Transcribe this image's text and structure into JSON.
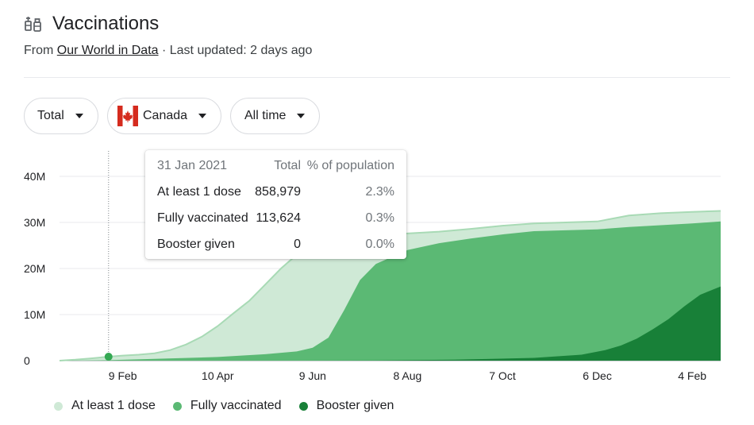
{
  "header": {
    "title": "Vaccinations",
    "title_icon": "syringe-vial-icon",
    "source_prefix": "From",
    "source_link": "Our World in Data",
    "updated": "· Last updated: 2 days ago"
  },
  "filters": {
    "metric": "Total",
    "country": "Canada",
    "country_icon": "canada-flag-icon",
    "range": "All time"
  },
  "tooltip": {
    "date": "31 Jan 2021",
    "col_total": "Total",
    "col_pct": "% of population",
    "rows": [
      {
        "label": "At least 1 dose",
        "total": "858,979",
        "pct": "2.3%"
      },
      {
        "label": "Fully vaccinated",
        "total": "113,624",
        "pct": "0.3%"
      },
      {
        "label": "Booster given",
        "total": "0",
        "pct": "0.0%"
      }
    ]
  },
  "legend": [
    {
      "label": "At least 1 dose",
      "color": "#a8dab5"
    },
    {
      "label": "Fully vaccinated",
      "color": "#5bb974"
    },
    {
      "label": "Booster given",
      "color": "#188038"
    }
  ],
  "chart_data": {
    "type": "area",
    "y_ticks": [
      "40M",
      "30M",
      "20M",
      "10M",
      "0"
    ],
    "y_tick_values": [
      40,
      30,
      20,
      10,
      0
    ],
    "x_ticks": [
      "9 Feb",
      "10 Apr",
      "9 Jun",
      "8 Aug",
      "7 Oct",
      "6 Dec",
      "4 Feb"
    ],
    "x_tick_days": [
      40,
      100,
      160,
      220,
      280,
      340,
      400
    ],
    "ylim": [
      0,
      42
    ],
    "xlim": [
      0,
      418
    ],
    "x_unit": "days",
    "grid": true,
    "legend_position": "bottom-left",
    "highlight_day": 31,
    "series": [
      {
        "name": "At least 1 dose",
        "color": "#cfe9d6",
        "days": [
          0,
          10,
          20,
          31,
          40,
          50,
          60,
          70,
          80,
          90,
          100,
          110,
          120,
          130,
          140,
          150,
          160,
          170,
          180,
          190,
          200,
          220,
          240,
          260,
          280,
          300,
          340,
          360,
          380,
          400,
          418
        ],
        "values": [
          0,
          0.2,
          0.5,
          0.86,
          1.1,
          1.3,
          1.6,
          2.3,
          3.5,
          5.2,
          7.5,
          10.3,
          13.0,
          16.5,
          20.0,
          23.0,
          25.0,
          26.0,
          26.5,
          26.8,
          27.1,
          27.6,
          28.0,
          28.6,
          29.3,
          29.8,
          30.2,
          31.5,
          32.0,
          32.3,
          32.5
        ]
      },
      {
        "name": "Fully vaccinated",
        "color": "#5bb974",
        "days": [
          0,
          31,
          60,
          100,
          130,
          150,
          160,
          170,
          180,
          190,
          200,
          220,
          240,
          260,
          280,
          300,
          340,
          360,
          380,
          400,
          418
        ],
        "values": [
          0,
          0.11,
          0.4,
          0.8,
          1.4,
          2.0,
          2.8,
          5.0,
          11.0,
          17.5,
          21.0,
          24.0,
          25.5,
          26.5,
          27.4,
          28.1,
          28.5,
          29.0,
          29.4,
          29.8,
          30.2
        ]
      },
      {
        "name": "Booster given",
        "color": "#188038",
        "days": [
          0,
          31,
          150,
          200,
          250,
          300,
          330,
          345,
          355,
          365,
          375,
          385,
          395,
          405,
          418
        ],
        "values": [
          0,
          0,
          0,
          0.05,
          0.2,
          0.6,
          1.3,
          2.3,
          3.3,
          4.8,
          6.8,
          9.0,
          11.8,
          14.3,
          16.1
        ]
      }
    ]
  }
}
